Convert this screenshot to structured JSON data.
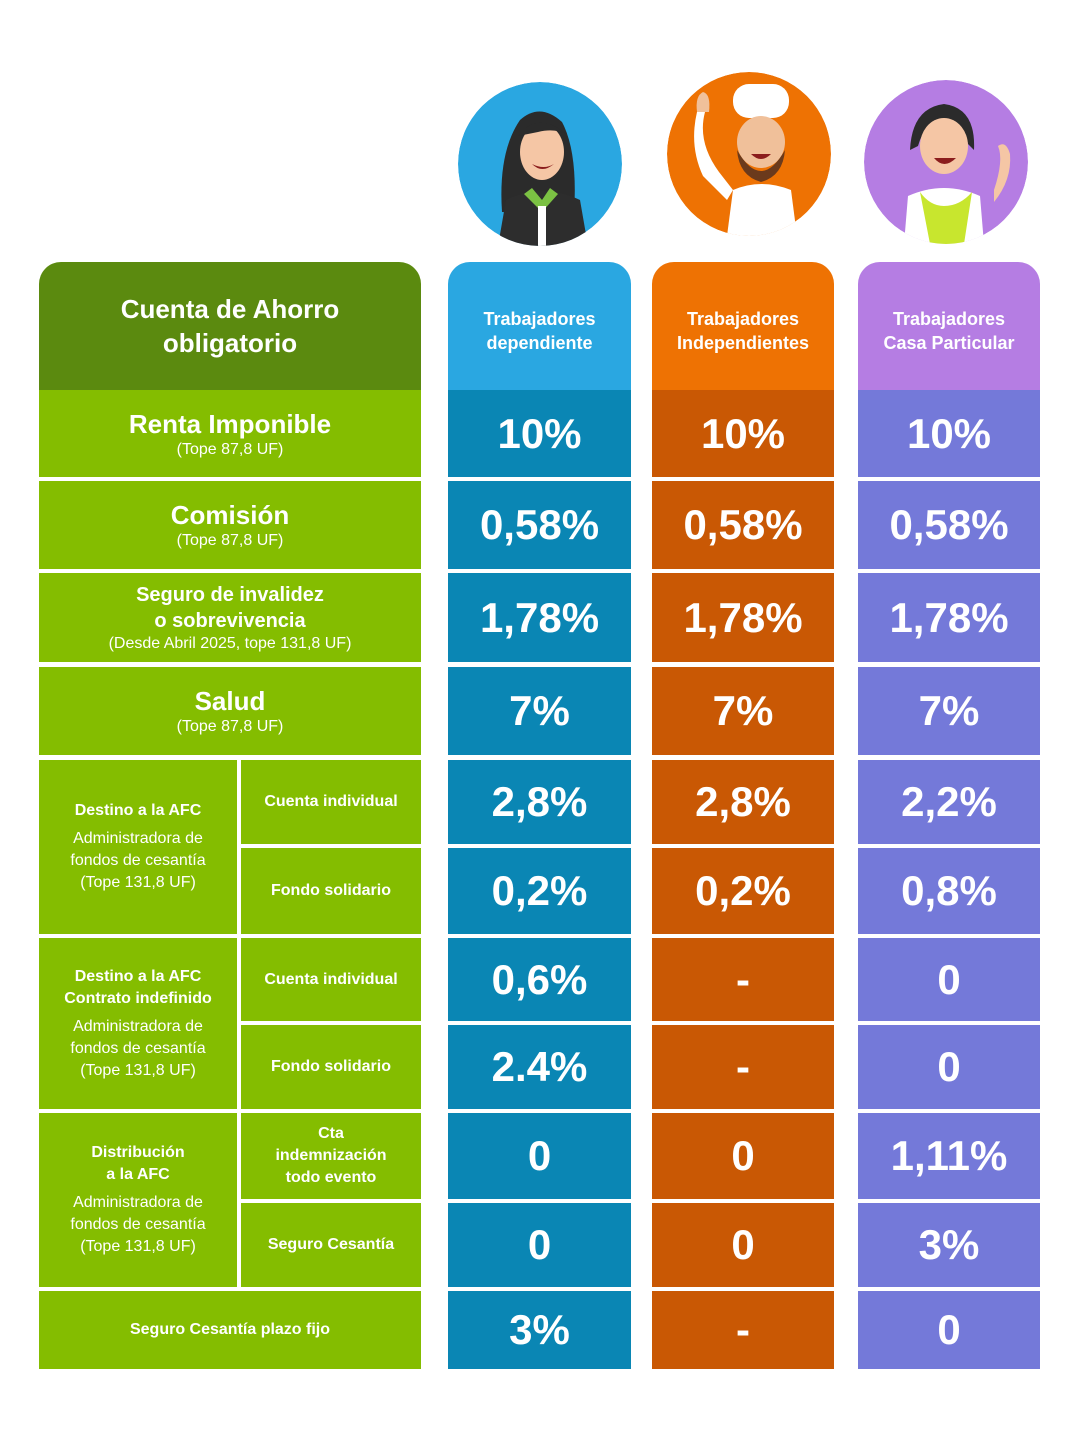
{
  "header": {
    "title_line1": "Cuenta de Ahorro",
    "title_line2": "obligatorio"
  },
  "columns": [
    {
      "line1": "Trabajadores",
      "line2": "dependiente",
      "color": "#2aa7e1"
    },
    {
      "line1": "Trabajadores",
      "line2": "Independientes",
      "color": "#ee7203"
    },
    {
      "line1": "Trabajadores",
      "line2": "Casa Particular",
      "color": "#b57de3"
    }
  ],
  "colors": {
    "green_header": "#5b8a0f",
    "green_rows": "#84bd00",
    "col1_cells": "#0a86b4",
    "col2_cells": "#c95804",
    "col3_cells": "#7479d9"
  },
  "rows": {
    "renta": {
      "title": "Renta Imponible",
      "sub": "(Tope 87,8 UF)",
      "values": [
        "10%",
        "10%",
        "10%"
      ]
    },
    "comision": {
      "title": "Comisión",
      "sub": "(Tope 87,8 UF)",
      "values": [
        "0,58%",
        "0,58%",
        "0,58%"
      ]
    },
    "seguro": {
      "title_line1": "Seguro de invalidez",
      "title_line2": "o sobrevivencia",
      "sub": "(Desde Abril 2025, tope 131,8 UF)",
      "values": [
        "1,78%",
        "1,78%",
        "1,78%"
      ]
    },
    "salud": {
      "title": "Salud",
      "sub": "(Tope 87,8 UF)",
      "values": [
        "7%",
        "7%",
        "7%"
      ]
    }
  },
  "groups": {
    "afc1": {
      "title": "Destino a la AFC",
      "sub_line1": "Administradora de",
      "sub_line2": "fondos de cesantía",
      "sub_line3": "(Tope 131,8 UF)",
      "sub_a": "Cuenta individual",
      "sub_b": "Fondo solidario",
      "values_a": [
        "2,8%",
        "2,8%",
        "2,2%"
      ],
      "values_b": [
        "0,2%",
        "0,2%",
        "0,8%"
      ]
    },
    "afc2": {
      "title_line1": "Destino a la AFC",
      "title_line2": "Contrato indefinido",
      "sub_line1": "Administradora de",
      "sub_line2": "fondos de cesantía",
      "sub_line3": "(Tope 131,8 UF)",
      "sub_a": "Cuenta individual",
      "sub_b": "Fondo solidario",
      "values_a": [
        "0,6%",
        "-",
        "0"
      ],
      "values_b": [
        "2.4%",
        "-",
        "0"
      ]
    },
    "afc3": {
      "title_line1": "Distribución",
      "title_line2": "a la AFC",
      "sub_line1": "Administradora de",
      "sub_line2": "fondos de cesantía",
      "sub_line3": "(Tope 131,8 UF)",
      "sub_a_line1": "Cta",
      "sub_a_line2": "indemnización",
      "sub_a_line3": "todo evento",
      "sub_b": "Seguro Cesantía",
      "values_a": [
        "0",
        "0",
        "1,11%"
      ],
      "values_b": [
        "0",
        "0",
        "3%"
      ]
    }
  },
  "last_row": {
    "title": "Seguro Cesantía plazo fijo",
    "values": [
      "3%",
      "-",
      "0"
    ]
  },
  "avatars": [
    {
      "icon": "businesswoman-avatar-icon",
      "bg": "#2aa7e1"
    },
    {
      "icon": "chef-avatar-icon",
      "bg": "#ee7203"
    },
    {
      "icon": "housekeeper-avatar-icon",
      "bg": "#b57de3"
    }
  ]
}
